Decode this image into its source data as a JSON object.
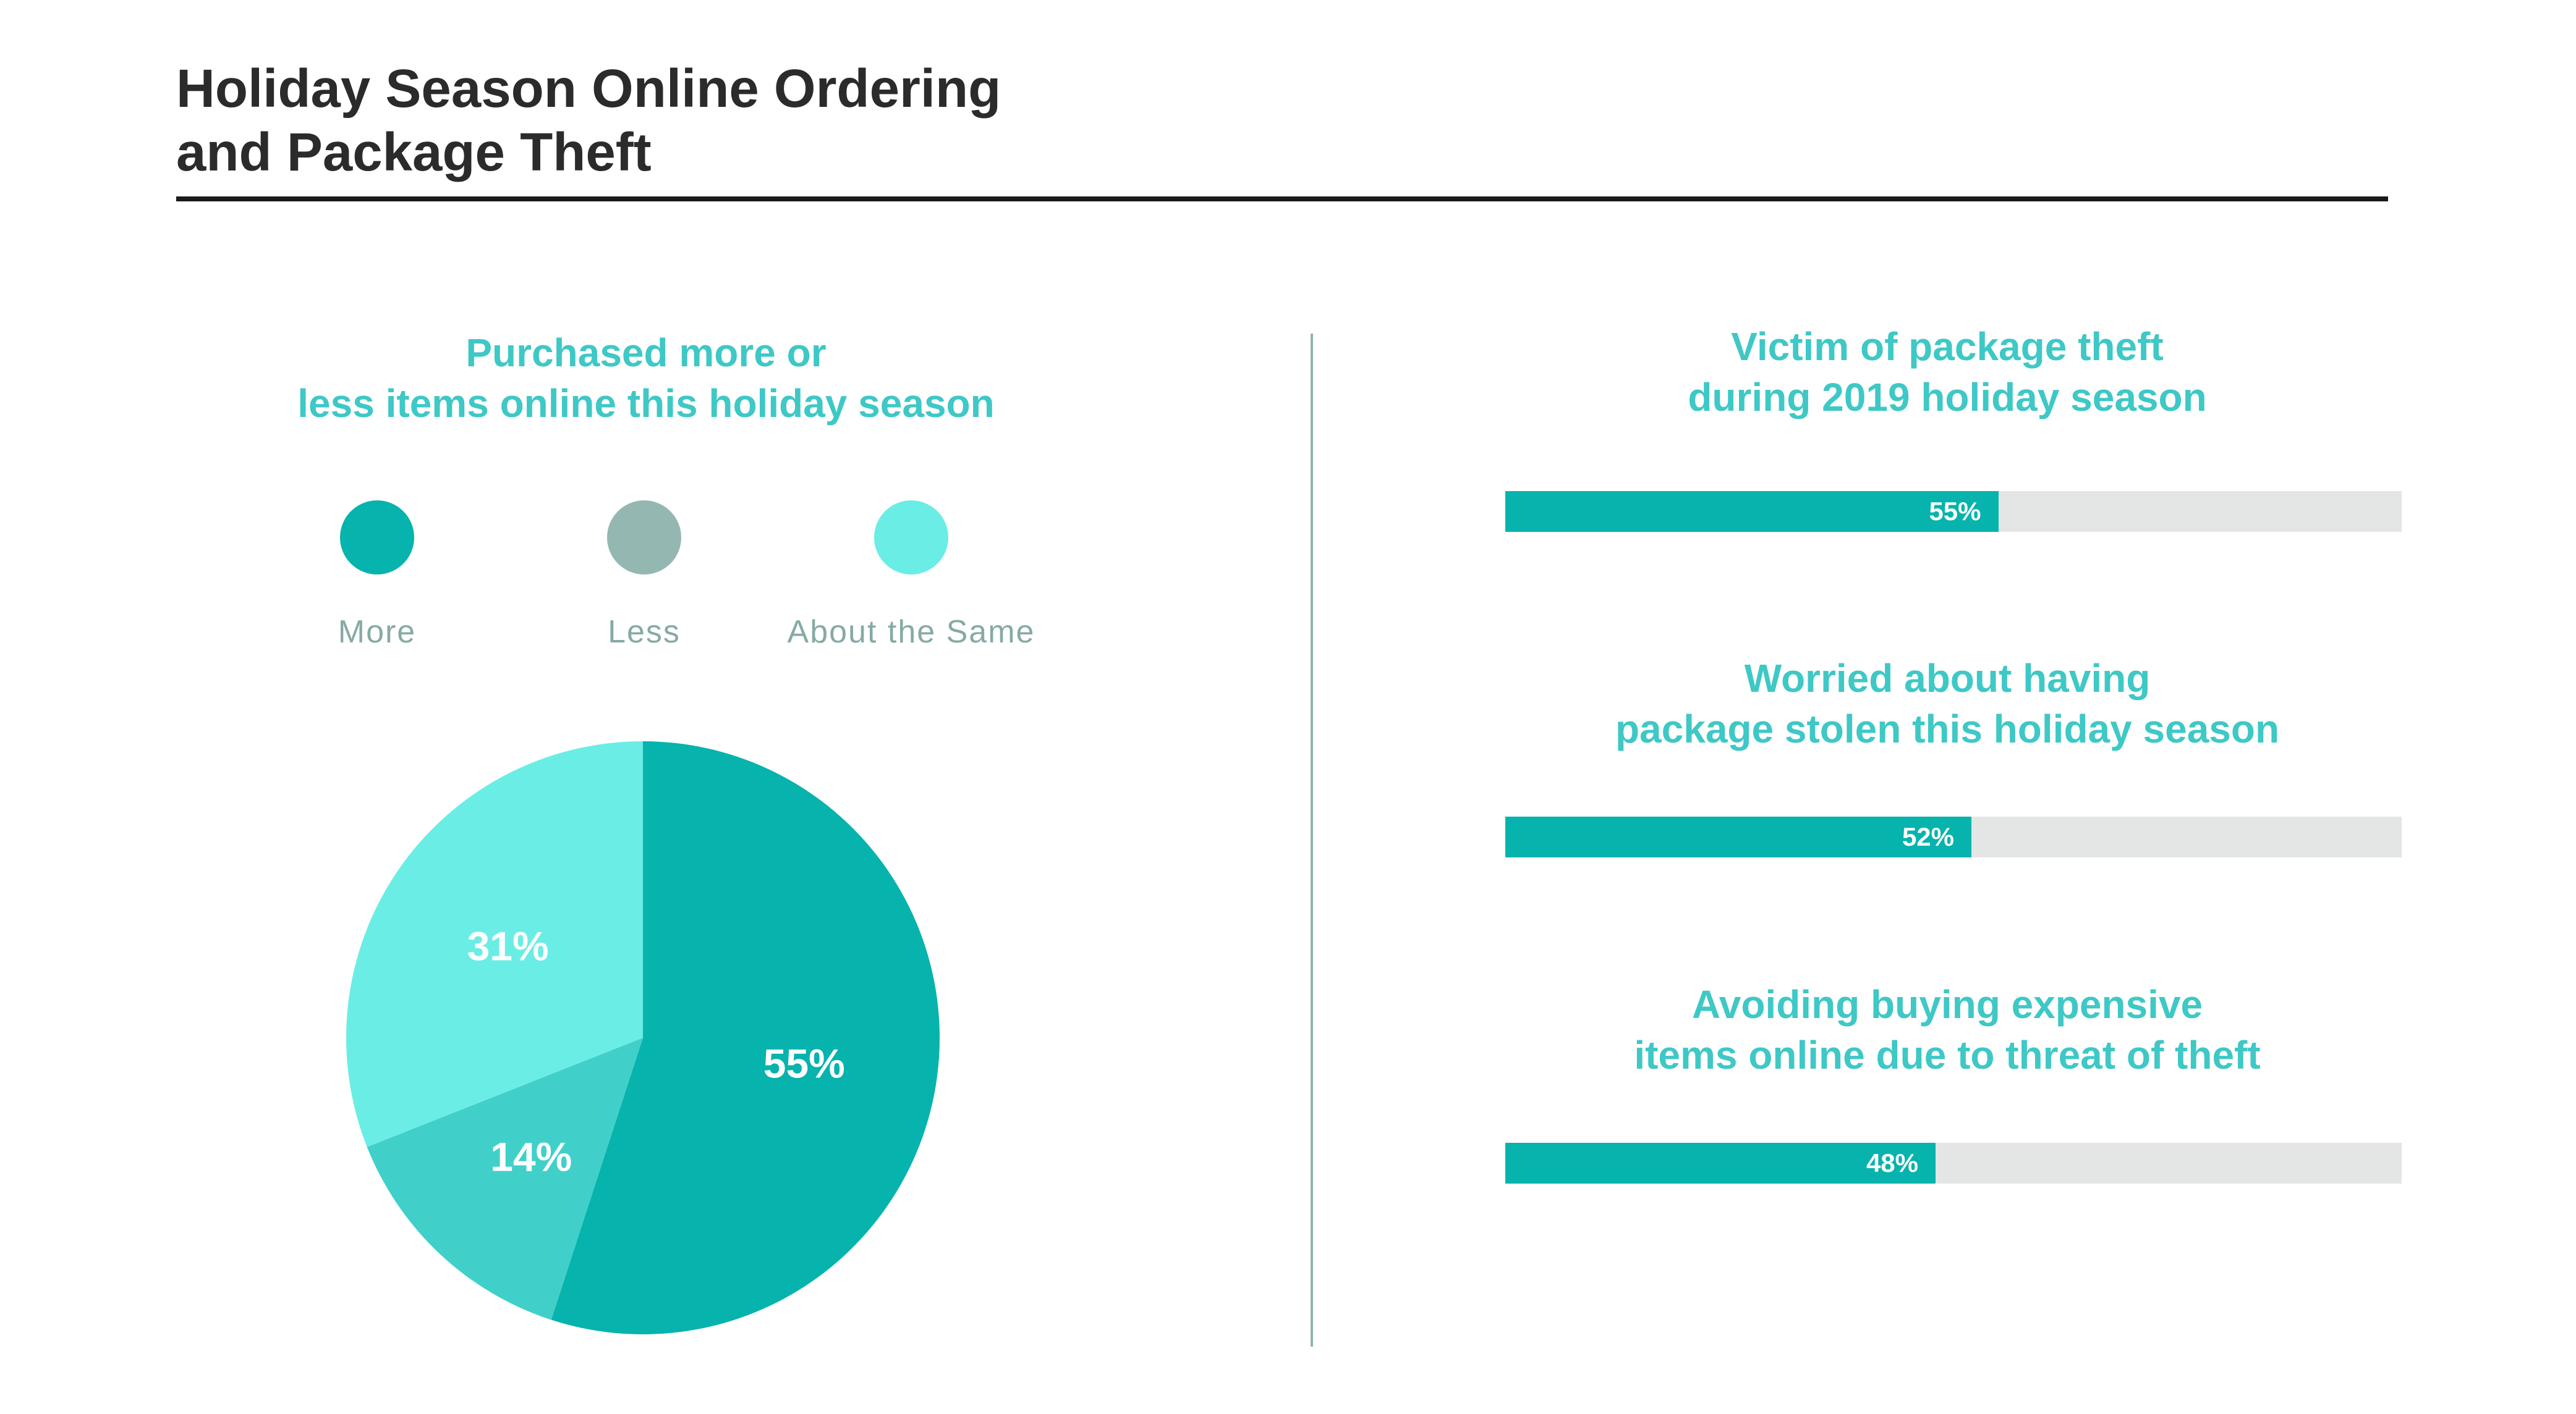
{
  "title": "Holiday Season Online Ordering\nand Package Theft",
  "colors": {
    "accent": "#3ec8c6",
    "more": "#06b3ad",
    "less": "#94b7b2",
    "same": "#6aede5",
    "less_slice": "#40d0c9",
    "track": "#e3e6e5"
  },
  "chart_data": [
    {
      "type": "pie",
      "title": "Purchased more or\nless items online this holiday season",
      "legend": [
        "More",
        "Less",
        "About the Same"
      ],
      "slices": [
        {
          "name": "More",
          "value": 55,
          "label": "55%"
        },
        {
          "name": "Less",
          "value": 14,
          "label": "14%"
        },
        {
          "name": "About the Same",
          "value": 31,
          "label": "31%"
        }
      ]
    },
    {
      "type": "bar",
      "orientation": "horizontal",
      "bars": [
        {
          "title": "Victim of package theft\nduring 2019 holiday season",
          "value": 55,
          "label": "55%"
        },
        {
          "title": "Worried about having\npackage stolen this holiday season",
          "value": 52,
          "label": "52%"
        },
        {
          "title": "Avoiding buying expensive\nitems online due to threat of theft",
          "value": 48,
          "label": "48%"
        }
      ],
      "xlim": [
        0,
        100
      ]
    }
  ]
}
